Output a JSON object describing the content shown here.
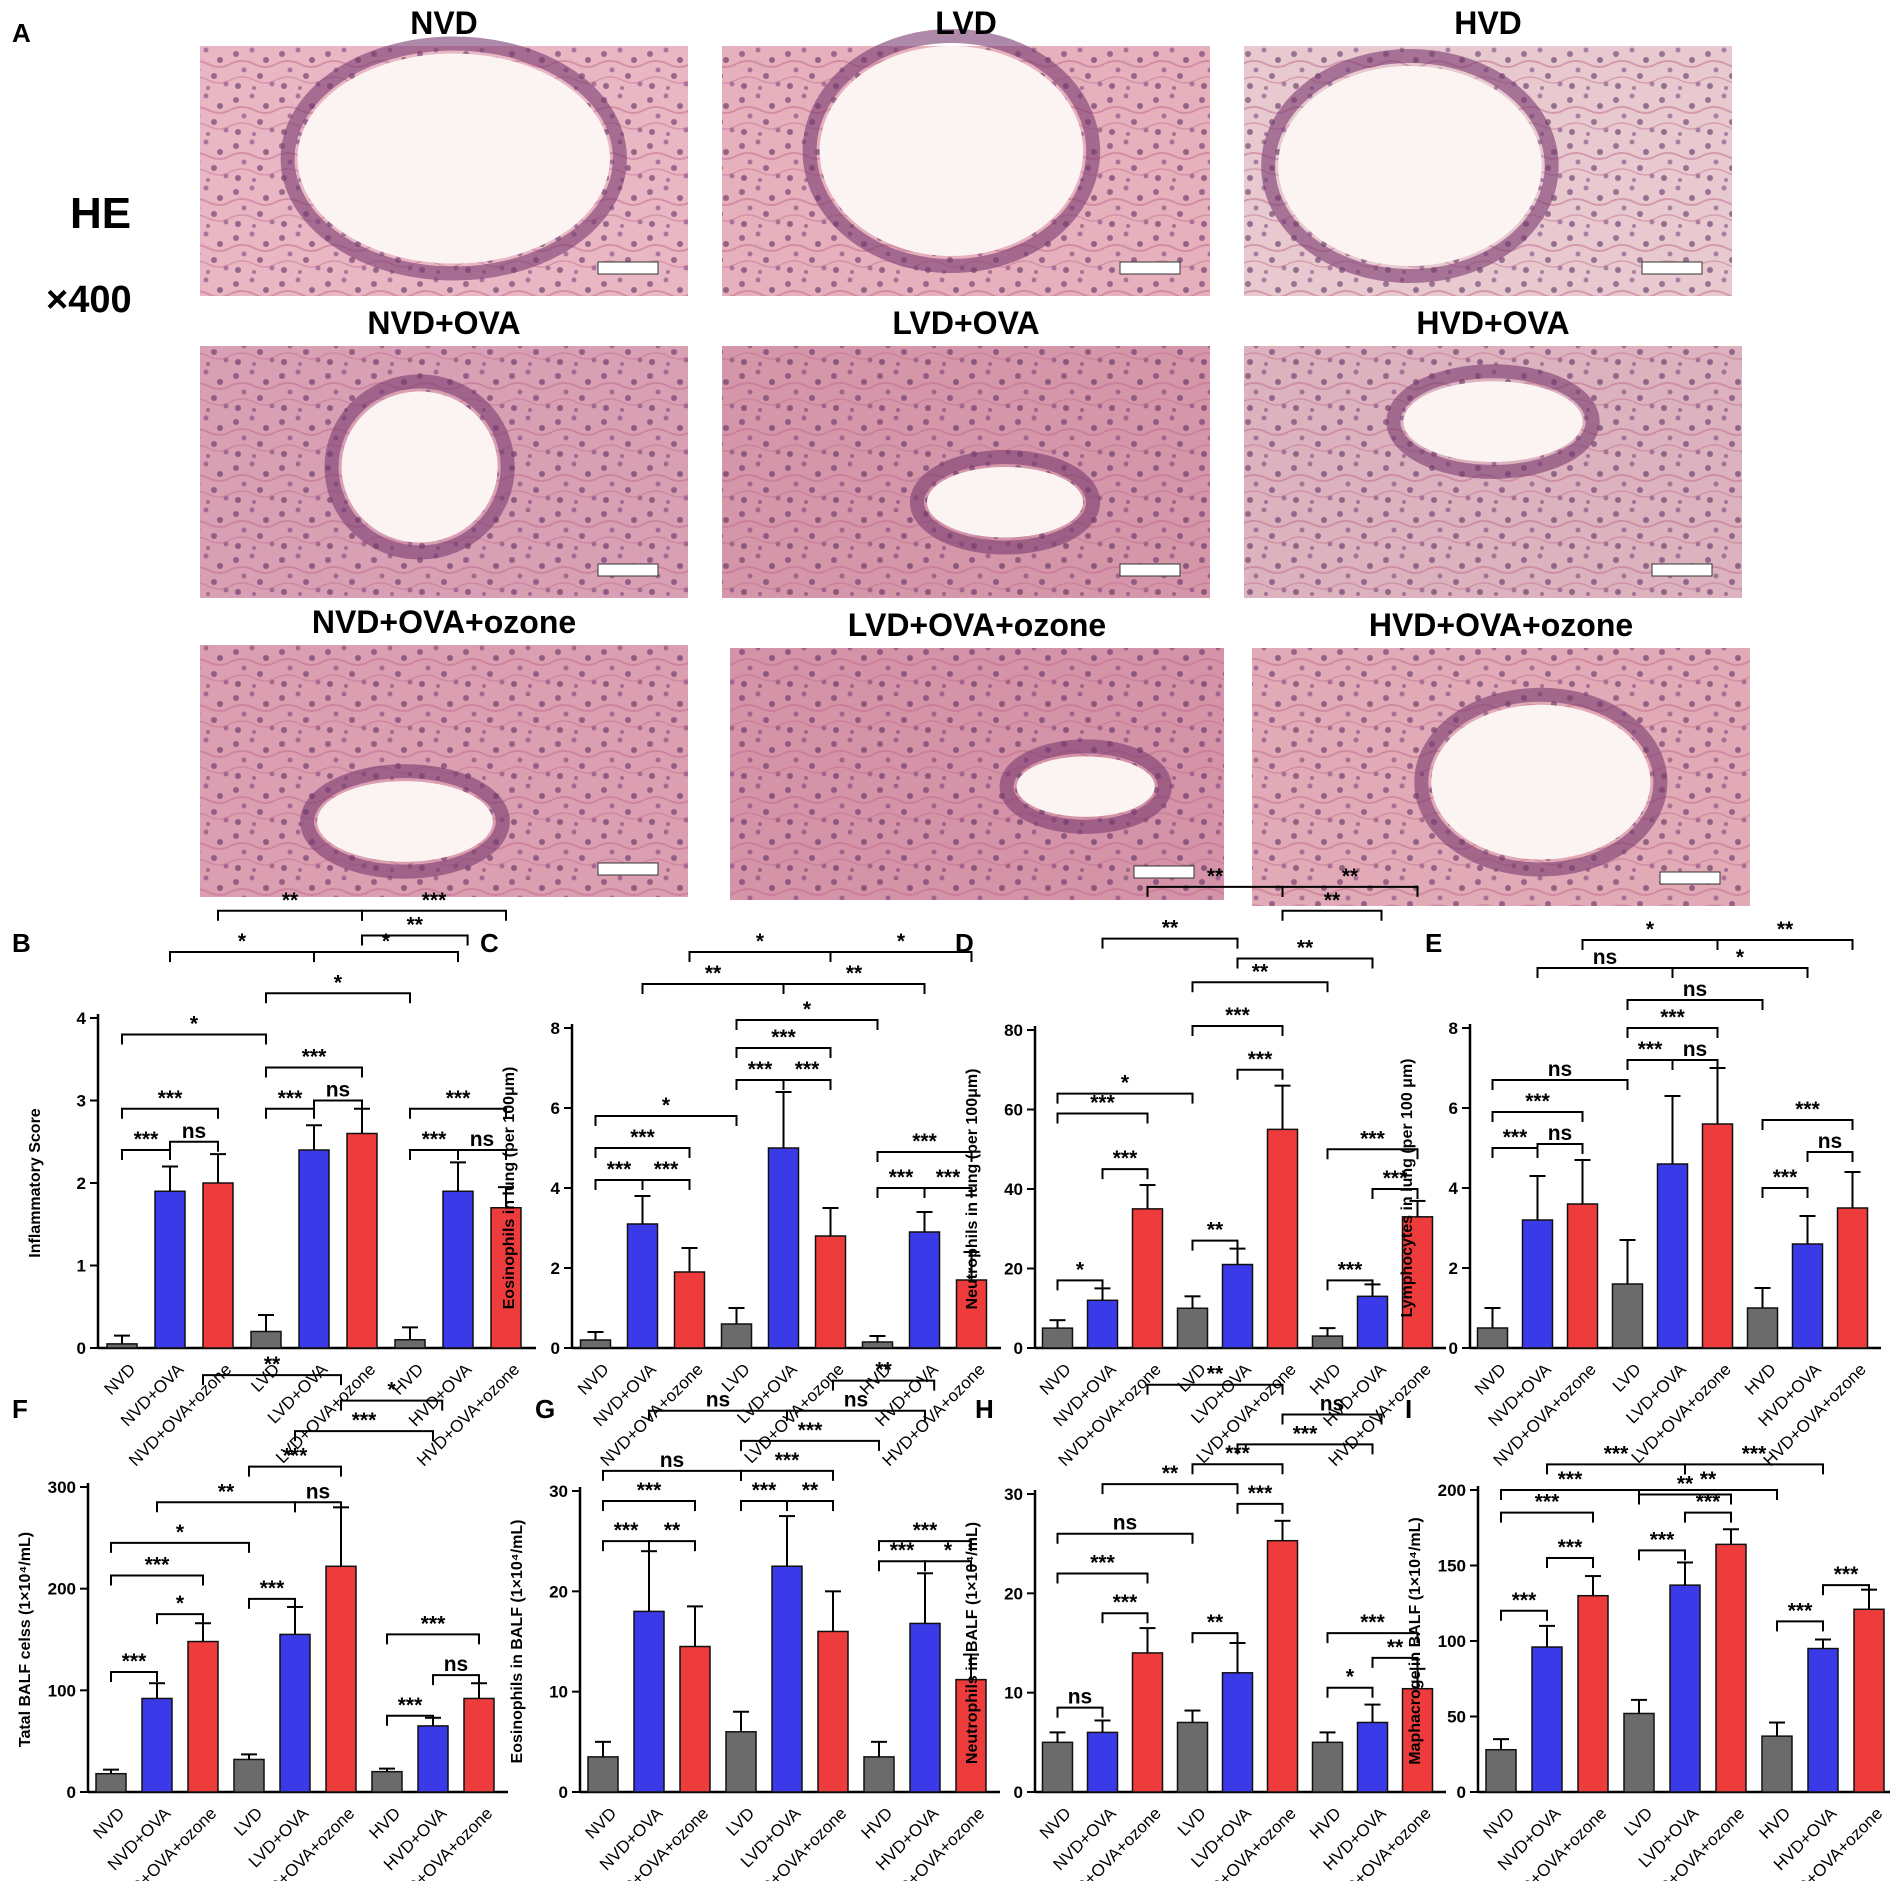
{
  "figure": {
    "panel_letters": [
      "A",
      "B",
      "C",
      "D",
      "E",
      "F",
      "G",
      "H",
      "I"
    ],
    "stain_label": "HE",
    "magnification": "×400"
  },
  "histology": [
    {
      "label": "NVD",
      "tone": "#e9b6c4"
    },
    {
      "label": "LVD",
      "tone": "#e7b0bd"
    },
    {
      "label": "HVD",
      "tone": "#e8c9d0"
    },
    {
      "label": "NVD+OVA",
      "tone": "#d9a0b4"
    },
    {
      "label": "LVD+OVA",
      "tone": "#d596aa"
    },
    {
      "label": "HVD+OVA",
      "tone": "#ddb2bf"
    },
    {
      "label": "NVD+OVA+ozone",
      "tone": "#dc9fb1"
    },
    {
      "label": "LVD+OVA+ozone",
      "tone": "#d593a8"
    },
    {
      "label": "HVD+OVA+ozone",
      "tone": "#e2aab6"
    }
  ],
  "colors": {
    "gray": "#6b6b6b",
    "blue": "#3a3ae8",
    "red": "#ee3b3b"
  },
  "chart_data": [
    {
      "panel": "B",
      "type": "bar",
      "ylabel": "Inflammatory Score",
      "ylim": [
        0,
        4
      ],
      "yticks": [
        0,
        1,
        2,
        3,
        4
      ],
      "categories": [
        "NVD",
        "NVD+OVA",
        "NVD+OVA+ozone",
        "LVD",
        "LVD+OVA",
        "LVD+OVA+ozone",
        "HVD",
        "HVD+OVA",
        "HVD+OVA+ozone"
      ],
      "values": [
        0.05,
        1.9,
        2.0,
        0.2,
        2.4,
        2.6,
        0.1,
        1.9,
        1.7
      ],
      "errors": [
        0.1,
        0.3,
        0.35,
        0.2,
        0.3,
        0.3,
        0.15,
        0.35,
        0.25
      ],
      "comparisons": [
        {
          "a": 0,
          "b": 1,
          "h": 2.4,
          "label": "***"
        },
        {
          "a": 1,
          "b": 2,
          "h": 2.5,
          "label": "ns"
        },
        {
          "a": 0,
          "b": 2,
          "h": 2.9,
          "label": "***"
        },
        {
          "a": 3,
          "b": 4,
          "h": 2.9,
          "label": "***"
        },
        {
          "a": 4,
          "b": 5,
          "h": 3.0,
          "label": "ns"
        },
        {
          "a": 3,
          "b": 5,
          "h": 3.4,
          "label": "***"
        },
        {
          "a": 6,
          "b": 7,
          "h": 2.4,
          "label": "***"
        },
        {
          "a": 7,
          "b": 8,
          "h": 2.4,
          "label": "ns"
        },
        {
          "a": 6,
          "b": 8,
          "h": 2.9,
          "label": "***"
        },
        {
          "a": 0,
          "b": 3,
          "h": 3.8,
          "label": "*"
        },
        {
          "a": 3,
          "b": 6,
          "h": 4.3,
          "label": "*"
        },
        {
          "a": 1,
          "b": 4,
          "h": 4.8,
          "label": "*"
        },
        {
          "a": 4,
          "b": 7,
          "h": 4.8,
          "label": "*"
        },
        {
          "a": 2,
          "b": 5,
          "h": 5.3,
          "label": "**"
        },
        {
          "a": 5,
          "b": 8,
          "h": 5.3,
          "label": "***"
        },
        {
          "a": 5,
          "b": 7.2,
          "h": 5.0,
          "label": "**"
        }
      ]
    },
    {
      "panel": "C",
      "type": "bar",
      "ylabel": "Eosinophils in lung (per 100μm)",
      "ylim": [
        0,
        8
      ],
      "yticks": [
        0,
        2,
        4,
        6,
        8
      ],
      "categories": [
        "NVD",
        "NVD+OVA",
        "NVD+OVA+ozone",
        "LVD",
        "LVD+OVA",
        "LVD+OVA+ozone",
        "HVD",
        "HVD+OVA",
        "HVD+OVA+ozone"
      ],
      "values": [
        0.2,
        3.1,
        1.9,
        0.6,
        5.0,
        2.8,
        0.15,
        2.9,
        1.7
      ],
      "errors": [
        0.2,
        0.7,
        0.6,
        0.4,
        1.4,
        0.7,
        0.15,
        0.5,
        0.7
      ],
      "comparisons": [
        {
          "a": 0,
          "b": 1,
          "h": 4.2,
          "label": "***"
        },
        {
          "a": 1,
          "b": 2,
          "h": 4.2,
          "label": "***"
        },
        {
          "a": 0,
          "b": 2,
          "h": 5.0,
          "label": "***"
        },
        {
          "a": 3,
          "b": 4,
          "h": 6.7,
          "label": "***"
        },
        {
          "a": 4,
          "b": 5,
          "h": 6.7,
          "label": "***"
        },
        {
          "a": 3,
          "b": 5,
          "h": 7.5,
          "label": "***"
        },
        {
          "a": 6,
          "b": 7,
          "h": 4.0,
          "label": "***"
        },
        {
          "a": 7,
          "b": 8,
          "h": 4.0,
          "label": "***"
        },
        {
          "a": 6,
          "b": 8,
          "h": 4.9,
          "label": "***"
        },
        {
          "a": 0,
          "b": 3,
          "h": 5.8,
          "label": "*"
        },
        {
          "a": 3,
          "b": 6,
          "h": 8.2,
          "label": "*"
        },
        {
          "a": 1,
          "b": 4,
          "h": 9.1,
          "label": "**"
        },
        {
          "a": 4,
          "b": 7,
          "h": 9.1,
          "label": "**"
        },
        {
          "a": 2,
          "b": 5,
          "h": 9.9,
          "label": "*"
        },
        {
          "a": 5,
          "b": 8,
          "h": 9.9,
          "label": "*"
        }
      ]
    },
    {
      "panel": "D",
      "type": "bar",
      "ylabel": "Neutrophils in lung (per 100μm)",
      "ylim": [
        0,
        80
      ],
      "yticks": [
        0,
        20,
        40,
        60,
        80
      ],
      "categories": [
        "NVD",
        "NVD+OVA",
        "NVD+OVA+ozone",
        "LVD",
        "LVD+OVA",
        "LVD+OVA+ozone",
        "HVD",
        "HVD+OVA",
        "HVD+OVA+ozone"
      ],
      "values": [
        5,
        12,
        35,
        10,
        21,
        55,
        3,
        13,
        33
      ],
      "errors": [
        2,
        3,
        6,
        3,
        4,
        11,
        2,
        3,
        4
      ],
      "comparisons": [
        {
          "a": 0,
          "b": 1,
          "h": 17,
          "label": "*"
        },
        {
          "a": 1,
          "b": 2,
          "h": 45,
          "label": "***"
        },
        {
          "a": 0,
          "b": 2,
          "h": 59,
          "label": "***"
        },
        {
          "a": 3,
          "b": 4,
          "h": 27,
          "label": "**"
        },
        {
          "a": 4,
          "b": 5,
          "h": 70,
          "label": "***"
        },
        {
          "a": 3,
          "b": 5,
          "h": 81,
          "label": "***"
        },
        {
          "a": 6,
          "b": 7,
          "h": 17,
          "label": "***"
        },
        {
          "a": 7,
          "b": 8,
          "h": 40,
          "label": "***"
        },
        {
          "a": 6,
          "b": 8,
          "h": 50,
          "label": "***"
        },
        {
          "a": 0,
          "b": 3,
          "h": 64,
          "label": "*"
        },
        {
          "a": 3,
          "b": 6,
          "h": 92,
          "label": "**"
        },
        {
          "a": 1,
          "b": 4,
          "h": 103,
          "label": "**"
        },
        {
          "a": 4,
          "b": 7,
          "h": 98,
          "label": "**"
        },
        {
          "a": 2,
          "b": 5,
          "h": 116,
          "label": "**"
        },
        {
          "a": 5,
          "b": 8,
          "h": 116,
          "label": "**"
        },
        {
          "a": 5,
          "b": 7.2,
          "h": 110,
          "label": "**"
        }
      ]
    },
    {
      "panel": "E",
      "type": "bar",
      "ylabel": "Lymphocytes in lung (per 100 μm)",
      "ylim": [
        0,
        8
      ],
      "yticks": [
        0,
        2,
        4,
        6,
        8
      ],
      "categories": [
        "NVD",
        "NVD+OVA",
        "NVD+OVA+ozone",
        "LVD",
        "LVD+OVA",
        "LVD+OVA+ozone",
        "HVD",
        "HVD+OVA",
        "HVD+OVA+ozone"
      ],
      "values": [
        0.5,
        3.2,
        3.6,
        1.6,
        4.6,
        5.6,
        1.0,
        2.6,
        3.5
      ],
      "errors": [
        0.5,
        1.1,
        1.1,
        1.1,
        1.7,
        1.4,
        0.5,
        0.7,
        0.9
      ],
      "comparisons": [
        {
          "a": 0,
          "b": 1,
          "h": 5.0,
          "label": "***"
        },
        {
          "a": 1,
          "b": 2,
          "h": 5.1,
          "label": "ns"
        },
        {
          "a": 0,
          "b": 2,
          "h": 5.9,
          "label": "***"
        },
        {
          "a": 3,
          "b": 4,
          "h": 7.2,
          "label": "***"
        },
        {
          "a": 4,
          "b": 5,
          "h": 7.2,
          "label": "ns"
        },
        {
          "a": 3,
          "b": 5,
          "h": 8.0,
          "label": "***"
        },
        {
          "a": 6,
          "b": 7,
          "h": 4.0,
          "label": "***"
        },
        {
          "a": 7,
          "b": 8,
          "h": 4.9,
          "label": "ns"
        },
        {
          "a": 6,
          "b": 8,
          "h": 5.7,
          "label": "***"
        },
        {
          "a": 0,
          "b": 3,
          "h": 6.7,
          "label": "ns"
        },
        {
          "a": 3,
          "b": 6,
          "h": 8.7,
          "label": "ns"
        },
        {
          "a": 1,
          "b": 4,
          "h": 9.5,
          "label": "ns"
        },
        {
          "a": 4,
          "b": 7,
          "h": 9.5,
          "label": "*"
        },
        {
          "a": 2,
          "b": 5,
          "h": 10.2,
          "label": "*"
        },
        {
          "a": 5,
          "b": 8,
          "h": 10.2,
          "label": "**"
        }
      ]
    },
    {
      "panel": "F",
      "type": "bar",
      "ylabel": "Tatal BALF celss (1×10⁴/mL)",
      "ylim": [
        0,
        300
      ],
      "yticks": [
        0,
        100,
        200,
        300
      ],
      "categories": [
        "NVD",
        "NVD+OVA",
        "NVD+OVA+ozone",
        "LVD",
        "LVD+OVA",
        "LVD+OVA+ozone",
        "HVD",
        "HVD+OVA",
        "HVD+OVA+ozone"
      ],
      "values": [
        18,
        92,
        148,
        32,
        155,
        222,
        20,
        65,
        92
      ],
      "errors": [
        4,
        15,
        18,
        5,
        27,
        58,
        3,
        8,
        15
      ],
      "comparisons": [
        {
          "a": 0,
          "b": 1,
          "h": 118,
          "label": "***"
        },
        {
          "a": 1,
          "b": 2,
          "h": 175,
          "label": "*"
        },
        {
          "a": 0,
          "b": 2,
          "h": 213,
          "label": "***"
        },
        {
          "a": 3,
          "b": 4,
          "h": 190,
          "label": "***"
        },
        {
          "a": 4,
          "b": 5,
          "h": 285,
          "label": "ns"
        },
        {
          "a": 3,
          "b": 5,
          "h": 320,
          "label": "***"
        },
        {
          "a": 6,
          "b": 7,
          "h": 75,
          "label": "***"
        },
        {
          "a": 7,
          "b": 8,
          "h": 115,
          "label": "ns"
        },
        {
          "a": 6,
          "b": 8,
          "h": 155,
          "label": "***"
        },
        {
          "a": 0,
          "b": 3,
          "h": 245,
          "label": "*"
        },
        {
          "a": 1,
          "b": 4,
          "h": 285,
          "label": "**"
        },
        {
          "a": 4,
          "b": 7,
          "h": 355,
          "label": "***"
        },
        {
          "a": 5,
          "b": 7.2,
          "h": 385,
          "label": "*"
        },
        {
          "a": 2,
          "b": 5,
          "h": 410,
          "label": "**"
        }
      ]
    },
    {
      "panel": "G",
      "type": "bar",
      "ylabel": "Eosinophils in BALF (1×10⁴/mL)",
      "ylim": [
        0,
        30
      ],
      "yticks": [
        0,
        10,
        20,
        30
      ],
      "categories": [
        "NVD",
        "NVD+OVA",
        "NVD+OVA+ozone",
        "LVD",
        "LVD+OVA",
        "LVD+OVA+ozone",
        "HVD",
        "HVD+OVA",
        "HVD+OVA+ozone"
      ],
      "values": [
        3.5,
        18,
        14.5,
        6,
        22.5,
        16,
        3.5,
        16.8,
        11.2
      ],
      "errors": [
        1.5,
        6,
        4,
        2,
        5,
        4,
        1.5,
        5,
        2.5
      ],
      "comparisons": [
        {
          "a": 0,
          "b": 1,
          "h": 25,
          "label": "***"
        },
        {
          "a": 1,
          "b": 2,
          "h": 25,
          "label": "**"
        },
        {
          "a": 0,
          "b": 2,
          "h": 29,
          "label": "***"
        },
        {
          "a": 3,
          "b": 4,
          "h": 29,
          "label": "***"
        },
        {
          "a": 4,
          "b": 5,
          "h": 29,
          "label": "**"
        },
        {
          "a": 3,
          "b": 5,
          "h": 32,
          "label": "***"
        },
        {
          "a": 6,
          "b": 7,
          "h": 23,
          "label": "***"
        },
        {
          "a": 7,
          "b": 8,
          "h": 23,
          "label": "*"
        },
        {
          "a": 6,
          "b": 8,
          "h": 25,
          "label": "***"
        },
        {
          "a": 0,
          "b": 3,
          "h": 32,
          "label": "ns"
        },
        {
          "a": 3,
          "b": 6,
          "h": 35,
          "label": "***"
        },
        {
          "a": 1,
          "b": 4,
          "h": 38,
          "label": "ns"
        },
        {
          "a": 4,
          "b": 7,
          "h": 38,
          "label": "ns"
        },
        {
          "a": 5,
          "b": 7.2,
          "h": 41,
          "label": "**"
        }
      ]
    },
    {
      "panel": "H",
      "type": "bar",
      "ylabel": "Neutrophils in BALF (1×10⁴/mL)",
      "ylim": [
        0,
        30
      ],
      "yticks": [
        0,
        10,
        20,
        30
      ],
      "categories": [
        "NVD",
        "NVD+OVA",
        "NVD+OVA+ozone",
        "LVD",
        "LVD+OVA",
        "LVD+OVA+ozone",
        "HVD",
        "HVD+OVA",
        "HVD+OVA+ozone"
      ],
      "values": [
        5,
        6,
        14,
        7,
        12,
        25.3,
        5,
        7,
        10.4
      ],
      "errors": [
        1,
        1.2,
        2.5,
        1.2,
        3,
        2,
        1,
        1.8,
        2
      ],
      "comparisons": [
        {
          "a": 0,
          "b": 1,
          "h": 8.5,
          "label": "ns"
        },
        {
          "a": 1,
          "b": 2,
          "h": 18,
          "label": "***"
        },
        {
          "a": 0,
          "b": 2,
          "h": 22,
          "label": "***"
        },
        {
          "a": 3,
          "b": 4,
          "h": 16,
          "label": "**"
        },
        {
          "a": 4,
          "b": 5,
          "h": 29,
          "label": "***"
        },
        {
          "a": 3,
          "b": 5,
          "h": 33,
          "label": "***"
        },
        {
          "a": 6,
          "b": 7,
          "h": 10.5,
          "label": "*"
        },
        {
          "a": 7,
          "b": 8,
          "h": 13.5,
          "label": "**"
        },
        {
          "a": 6,
          "b": 8,
          "h": 16,
          "label": "***"
        },
        {
          "a": 0,
          "b": 3,
          "h": 26,
          "label": "ns"
        },
        {
          "a": 1,
          "b": 4,
          "h": 31,
          "label": "**"
        },
        {
          "a": 4,
          "b": 7,
          "h": 35,
          "label": "***"
        },
        {
          "a": 5,
          "b": 7.2,
          "h": 38,
          "label": "ns"
        },
        {
          "a": 2,
          "b": 5,
          "h": 41,
          "label": "**"
        }
      ]
    },
    {
      "panel": "I",
      "type": "bar",
      "ylabel": "Maphacroge in BALF (1×10⁴/mL)",
      "ylim": [
        0,
        200
      ],
      "yticks": [
        0,
        50,
        100,
        150,
        200
      ],
      "categories": [
        "NVD",
        "NVD+OVA",
        "NVD+OVA+ozone",
        "LVD",
        "LVD+OVA",
        "LVD+OVA+ozone",
        "HVD",
        "HVD+OVA",
        "HVD+OVA+ozone"
      ],
      "values": [
        28,
        96,
        130,
        52,
        137,
        164,
        37,
        95,
        121
      ],
      "errors": [
        7,
        14,
        13,
        9,
        15,
        10,
        9,
        6,
        13
      ],
      "comparisons": [
        {
          "a": 0,
          "b": 1,
          "h": 120,
          "label": "***"
        },
        {
          "a": 1,
          "b": 2,
          "h": 155,
          "label": "***"
        },
        {
          "a": 0,
          "b": 2,
          "h": 185,
          "label": "***"
        },
        {
          "a": 3,
          "b": 4,
          "h": 160,
          "label": "***"
        },
        {
          "a": 4,
          "b": 5,
          "h": 185,
          "label": "***"
        },
        {
          "a": 3,
          "b": 5,
          "h": 197,
          "label": "**"
        },
        {
          "a": 6,
          "b": 7,
          "h": 113,
          "label": "***"
        },
        {
          "a": 7,
          "b": 8,
          "h": 137,
          "label": "***"
        },
        {
          "a": 0,
          "b": 3,
          "h": 200,
          "label": "***"
        },
        {
          "a": 3,
          "b": 6,
          "h": 200,
          "label": "**"
        },
        {
          "a": 1,
          "b": 4,
          "h": 217,
          "label": "***"
        },
        {
          "a": 4,
          "b": 7,
          "h": 217,
          "label": "***"
        }
      ]
    }
  ]
}
